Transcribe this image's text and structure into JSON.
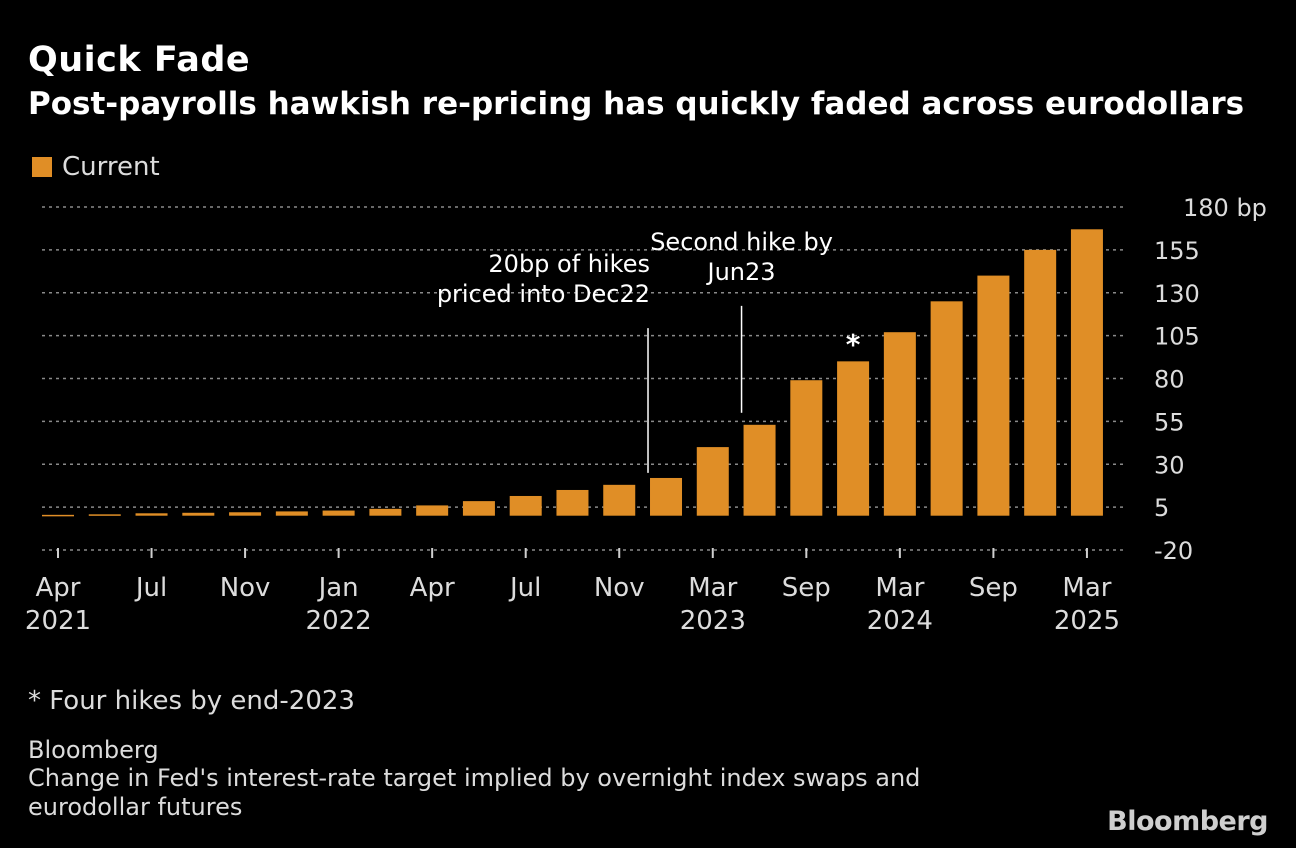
{
  "title": "Quick Fade",
  "subtitle": "Post-payrolls hawkish re-pricing has quickly faded across eurodollars",
  "legend": {
    "label": "Current",
    "color": "#e08e26"
  },
  "footnote": "* Four hikes by end-2023",
  "source": "Bloomberg",
  "description": "Change in Fed's interest-rate target implied by overnight index swaps and eurodollar futures",
  "logo": "Bloomberg",
  "chart_data": {
    "type": "bar",
    "title": "Quick Fade",
    "series": [
      {
        "name": "Current",
        "color": "#e08e26",
        "values": [
          0.5,
          0.8,
          1.4,
          1.7,
          2,
          2.5,
          3,
          4,
          6,
          8.5,
          11.5,
          15,
          18,
          22,
          40,
          53,
          79,
          90,
          107,
          125,
          140,
          155,
          167
        ]
      }
    ],
    "ylim": [
      -20,
      180
    ],
    "yticks": [
      180,
      155,
      130,
      105,
      80,
      55,
      30,
      5,
      -20
    ],
    "ytick_labels": [
      "180 bp",
      "155",
      "130",
      "105",
      "80",
      "55",
      "30",
      "5",
      "-20"
    ],
    "xtick_labels": [
      {
        "bar": 0,
        "label": "Apr",
        "year": "2021"
      },
      {
        "bar": 2,
        "label": "Jul",
        "year": ""
      },
      {
        "bar": 4,
        "label": "Nov",
        "year": ""
      },
      {
        "bar": 6,
        "label": "Jan",
        "year": "2022"
      },
      {
        "bar": 8,
        "label": "Apr",
        "year": ""
      },
      {
        "bar": 10,
        "label": "Jul",
        "year": ""
      },
      {
        "bar": 12,
        "label": "Nov",
        "year": ""
      },
      {
        "bar": 14,
        "label": "Mar",
        "year": "2023"
      },
      {
        "bar": 16,
        "label": "Sep",
        "year": ""
      },
      {
        "bar": 18,
        "label": "Mar",
        "year": "2024"
      },
      {
        "bar": 20,
        "label": "Sep",
        "year": ""
      },
      {
        "bar": 22,
        "label": "Mar",
        "year": "2025"
      }
    ],
    "annotations": [
      {
        "bar": 13,
        "value": 25,
        "label_line1": "20bp of hikes",
        "label_line2": "priced into Dec22",
        "text_top_value": 142
      },
      {
        "bar": 15,
        "value": 60,
        "label_line1": "Second hike by",
        "label_line2": "Jun23",
        "text_top_value": 155
      }
    ],
    "marker": {
      "bar": 17,
      "symbol": "*",
      "note": "Four hikes by end-2023"
    },
    "grid": true,
    "xlabel": "",
    "ylabel": ""
  }
}
